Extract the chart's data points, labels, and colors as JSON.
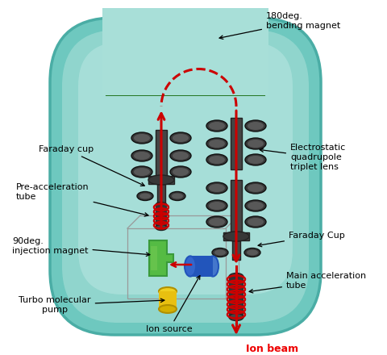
{
  "bg_color": "#ffffff",
  "teal_outer": "#6ec8bf",
  "teal_inner": "#a8dfd8",
  "teal_highlight": "#c8eeea",
  "green_dark": "#3a9a3a",
  "green_mid": "#55bb44",
  "green_light": "#77cc55",
  "green_inner_dark": "#1a5a1a",
  "dark_gray": "#383838",
  "mid_gray": "#585858",
  "light_gray": "#787878",
  "red_color": "#cc0000",
  "red_bright": "#ee0000",
  "yellow_color": "#e8c010",
  "blue_color": "#2255bb",
  "blue_light": "#4477cc",
  "wire_color": "#999999",
  "labels": {
    "bending_magnet": "180deg.\nbending magnet",
    "faraday_cup_left": "Faraday cup",
    "preaccel_tube": "Pre-acceleration\ntube",
    "injection_magnet": "90deg.\ninjection magnet",
    "turbo_pump": "Turbo molecular\npump",
    "ion_source": "Ion source",
    "electrostatic": "Electrostatic\nquadrupole\ntriplet lens",
    "faraday_cup_right": "Faraday Cup",
    "main_accel": "Main acceleration\ntube",
    "ion_beam": "Ion beam"
  }
}
